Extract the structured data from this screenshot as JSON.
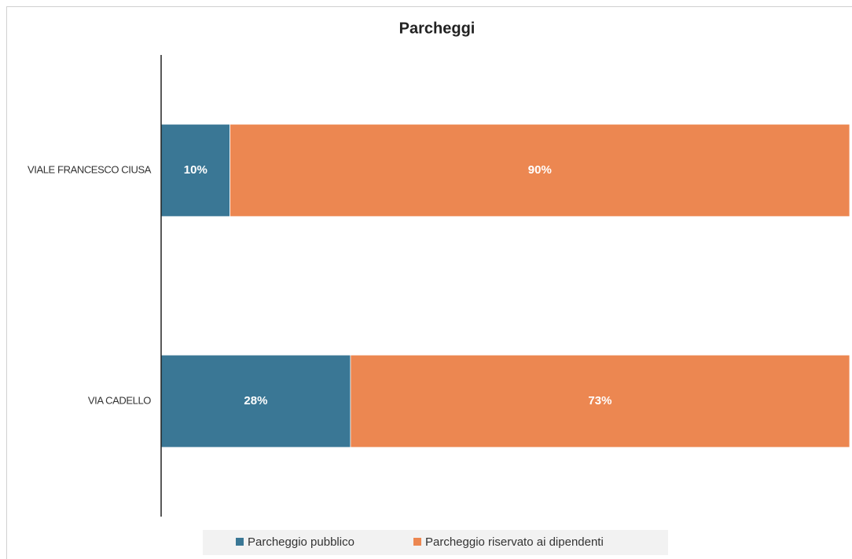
{
  "chart_data": {
    "type": "stacked_bar_horizontal",
    "title": "Parcheggi",
    "categories": [
      "VIALE FRANCESCO CIUSA",
      "VIA CADELLO"
    ],
    "series": [
      {
        "name": "Parcheggio pubblico",
        "color": "#3a7795",
        "values": [
          10,
          27.5
        ],
        "value_labels": [
          "10%",
          "28%"
        ]
      },
      {
        "name": "Parcheggio riservato ai dipendenti",
        "color": "#ec8751",
        "values": [
          90,
          72.5
        ],
        "value_labels": [
          "90%",
          "73%"
        ]
      }
    ],
    "xlim": [
      0,
      100
    ],
    "legend": "bottom"
  }
}
